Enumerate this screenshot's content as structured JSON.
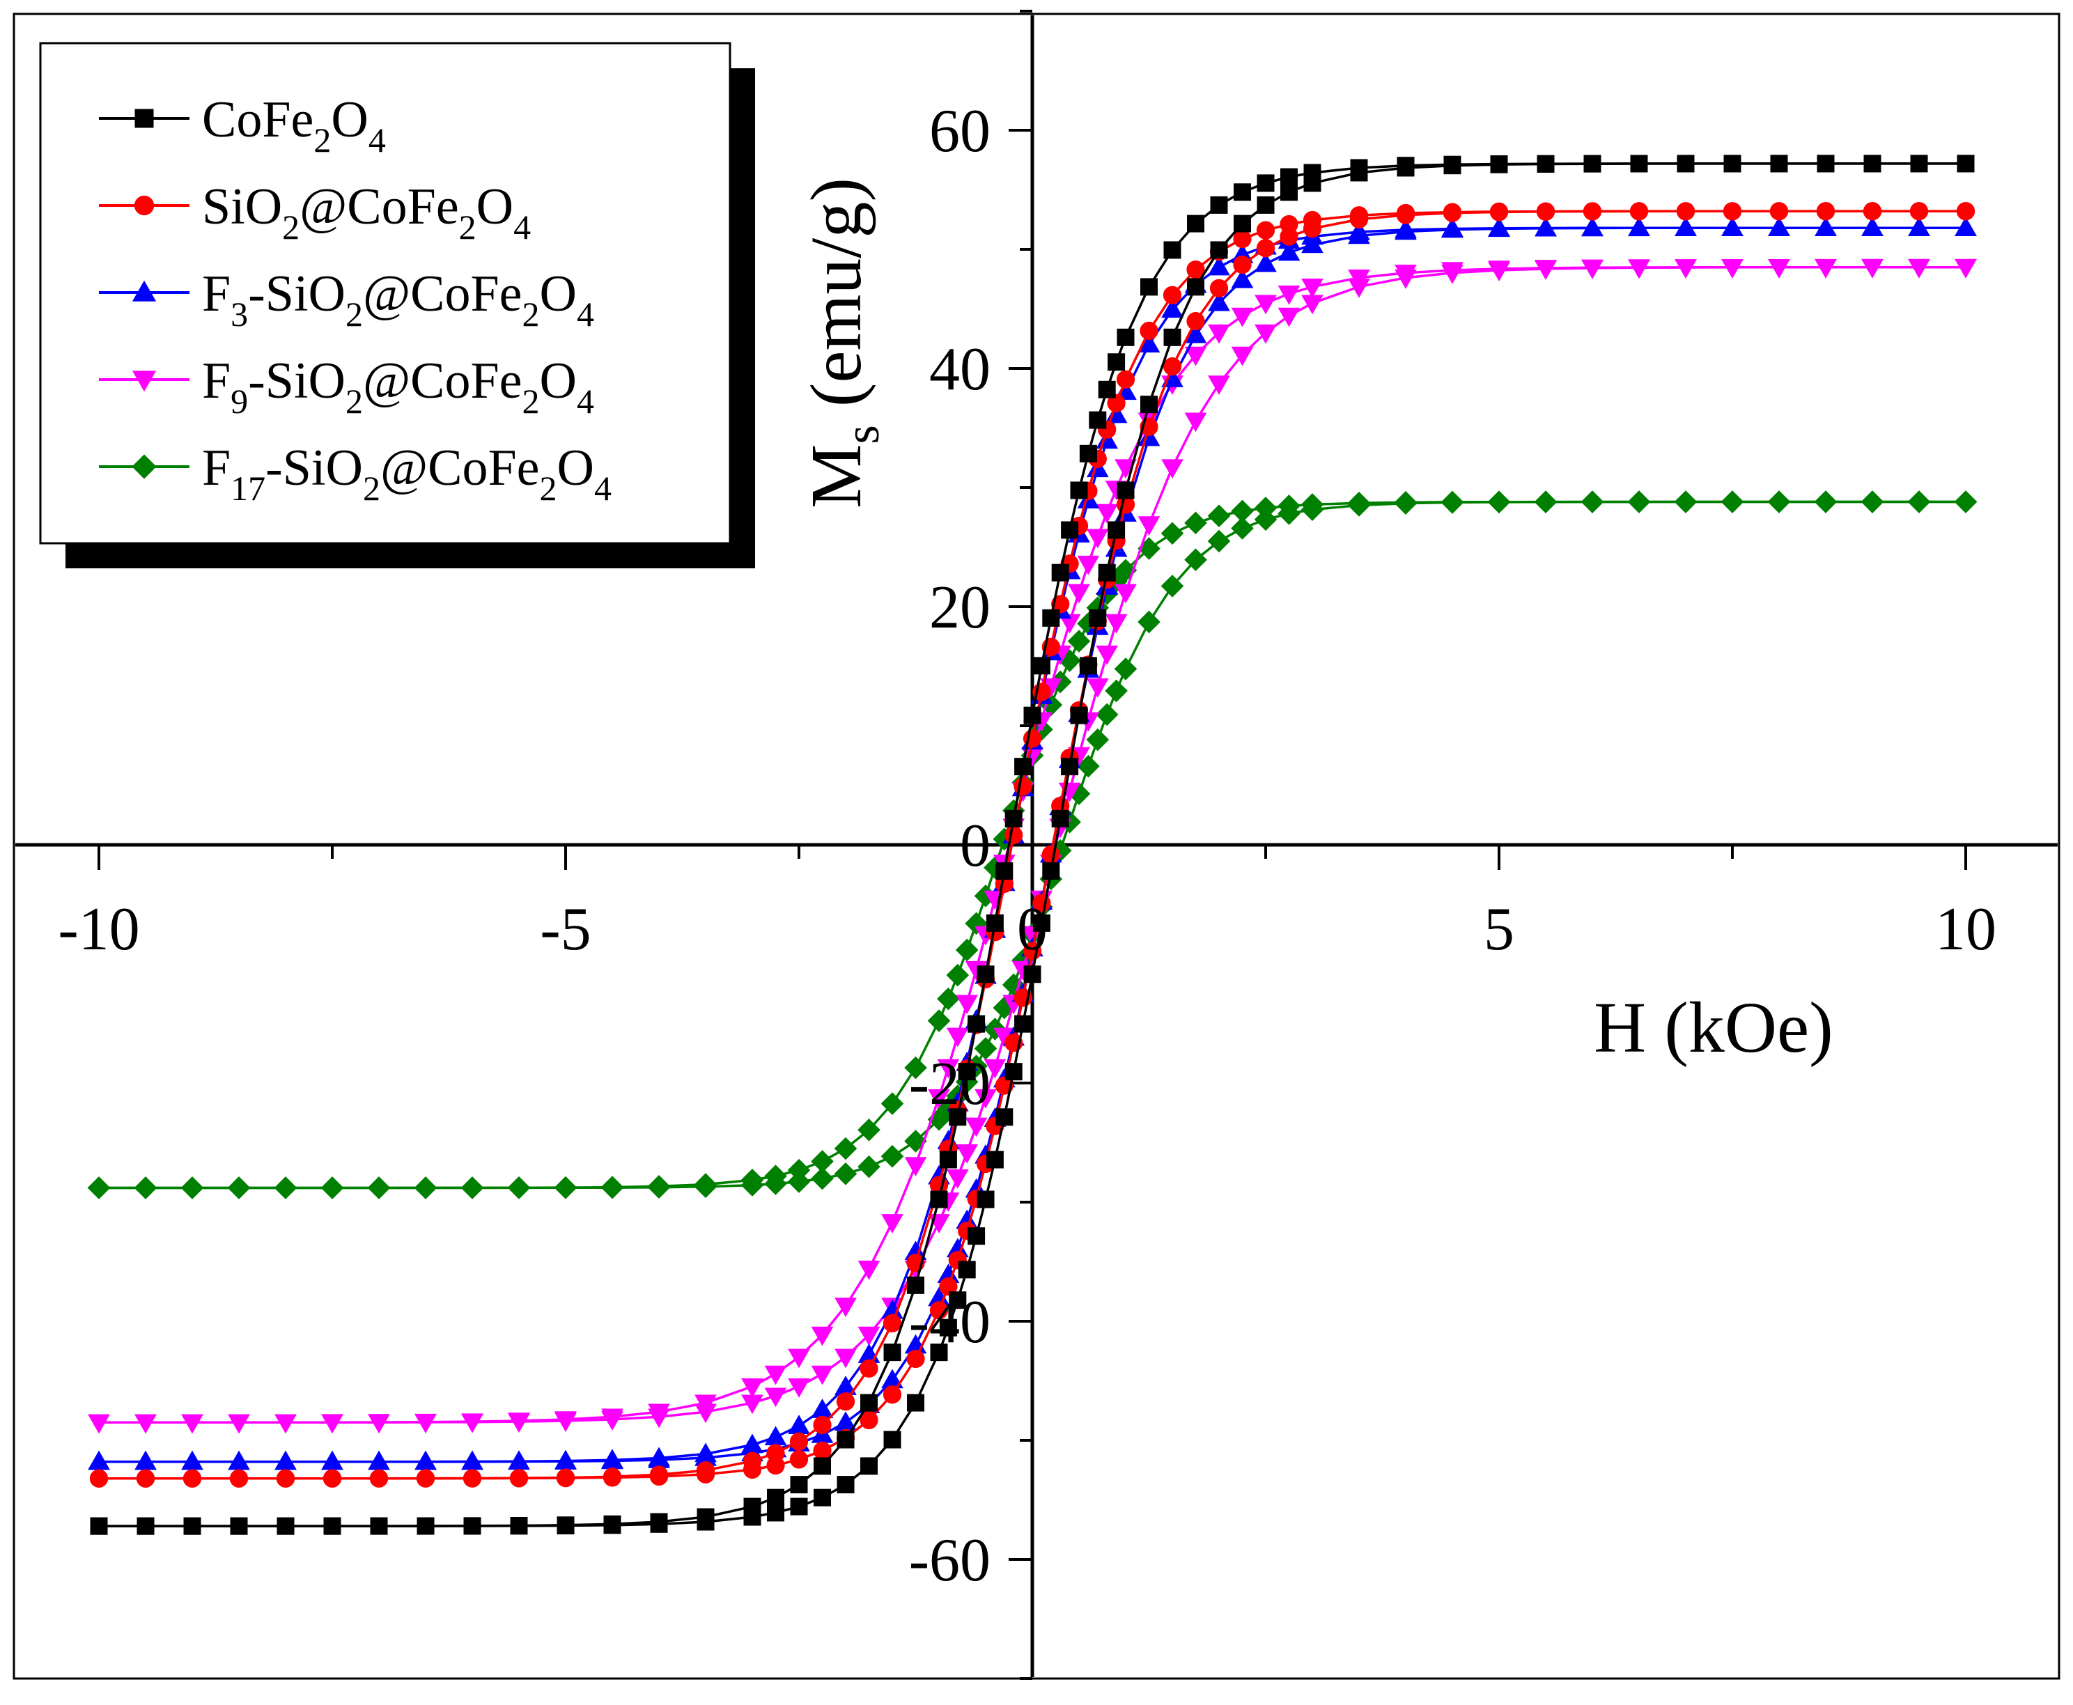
{
  "chart_data": {
    "type": "line",
    "title": "",
    "xlabel": "H (kOe)",
    "ylabel": "M",
    "ylabel_subscript": "s",
    "ylabel_unit": " (emu/g)",
    "xlim": [
      -10,
      10
    ],
    "ylim": [
      -70,
      70
    ],
    "xticks": [
      -10,
      -5,
      0,
      5,
      10
    ],
    "xtick_labels": [
      "-10",
      "-5",
      "0",
      "5",
      "10"
    ],
    "yticks": [
      -60,
      -40,
      -20,
      0,
      20,
      40,
      60
    ],
    "ytick_labels": [
      "-60",
      "-40",
      "-20",
      "0",
      "20",
      "40",
      "60"
    ],
    "grid": false,
    "legend_position": "top-left",
    "series": [
      {
        "name": "CoFe2O4",
        "legend": [
          {
            "t": "CoFe",
            "s": false
          },
          {
            "t": "2",
            "s": true
          },
          {
            "t": "O",
            "s": false
          },
          {
            "t": "4",
            "s": true
          }
        ],
        "color": "#000000",
        "marker": "square",
        "Ms": 57.2,
        "Hc": 0.25,
        "H0": 1.3
      },
      {
        "name": "SiO2@CoFe2O4",
        "legend": [
          {
            "t": "SiO",
            "s": false
          },
          {
            "t": "2",
            "s": true
          },
          {
            "t": "@CoFe",
            "s": false
          },
          {
            "t": "2",
            "s": true
          },
          {
            "t": "O",
            "s": false
          },
          {
            "t": "4",
            "s": true
          }
        ],
        "color": "#ff0000",
        "marker": "circle",
        "Ms": 53.2,
        "Hc": 0.22,
        "H0": 1.3
      },
      {
        "name": "F3-SiO2@CoFe2O4",
        "legend": [
          {
            "t": "F",
            "s": false
          },
          {
            "t": "3",
            "s": true
          },
          {
            "t": "-SiO",
            "s": false
          },
          {
            "t": "2",
            "s": true
          },
          {
            "t": "@CoFe",
            "s": false
          },
          {
            "t": "2",
            "s": true
          },
          {
            "t": "O",
            "s": false
          },
          {
            "t": "4",
            "s": true
          }
        ],
        "color": "#0000ff",
        "marker": "triangle-up",
        "Ms": 51.8,
        "Hc": 0.22,
        "H0": 1.3
      },
      {
        "name": "F9-SiO2@CoFe2O4",
        "legend": [
          {
            "t": "F",
            "s": false
          },
          {
            "t": "9",
            "s": true
          },
          {
            "t": "-SiO",
            "s": false
          },
          {
            "t": "2",
            "s": true
          },
          {
            "t": "@CoFe",
            "s": false
          },
          {
            "t": "2",
            "s": true
          },
          {
            "t": "O",
            "s": false
          },
          {
            "t": "4",
            "s": true
          }
        ],
        "color": "#ff00ff",
        "marker": "triangle-down",
        "Ms": 48.5,
        "Hc": 0.25,
        "H0": 1.6
      },
      {
        "name": "F17-SiO2@CoFe2O4",
        "legend": [
          {
            "t": "F",
            "s": false
          },
          {
            "t": "17",
            "s": true
          },
          {
            "t": "-SiO",
            "s": false
          },
          {
            "t": "2",
            "s": true
          },
          {
            "t": "@CoFe",
            "s": false
          },
          {
            "t": "2",
            "s": true
          },
          {
            "t": "O",
            "s": false
          },
          {
            "t": "4",
            "s": true
          }
        ],
        "color": "#008000",
        "marker": "diamond",
        "Ms": 28.8,
        "Hc": 0.32,
        "H0": 1.2
      }
    ]
  }
}
